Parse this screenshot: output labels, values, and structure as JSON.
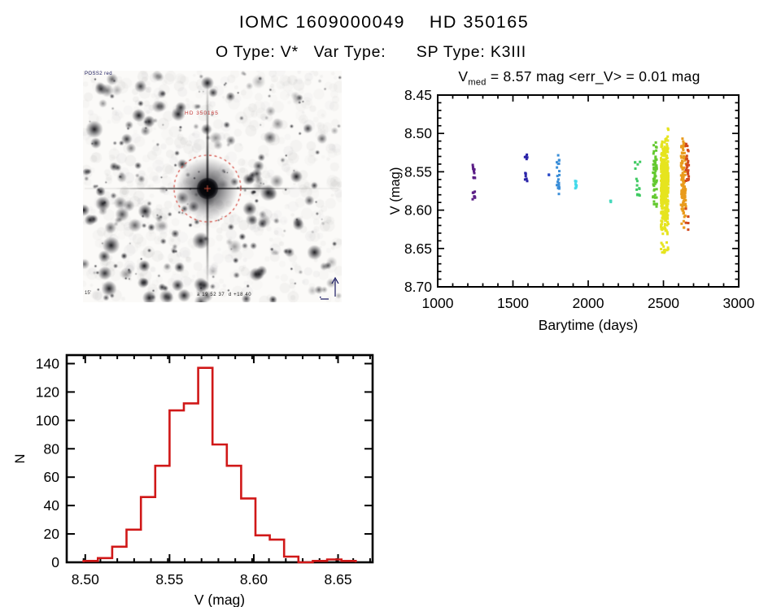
{
  "page": {
    "title": "IOMC 1609000049    HD 350165",
    "subtitle": "O Type: V*   Var Type:      SP Type: K3III"
  },
  "finder_chart": {
    "survey_label": "POSS2 red",
    "target_label": "HD 350165",
    "coords_label": "a 19 52 37  d +18 40",
    "scale_label": "15'",
    "circle_color": "#d2463c"
  },
  "chart_data": [
    {
      "type": "scatter",
      "title": {
        "main": "V",
        "sub": "med",
        "rest": " = 8.57 mag <err_V> = 0.01 mag"
      },
      "xlabel": "Barytime (days)",
      "ylabel": "V (mag)",
      "xlim": [
        1000,
        3000
      ],
      "ylim_top_to_bottom": [
        8.45,
        8.7
      ],
      "xticks": [
        "1000",
        "1500",
        "2000",
        "2500",
        "3000"
      ],
      "yticks": [
        "8.45",
        "8.50",
        "8.55",
        "8.60",
        "8.65",
        "8.70"
      ],
      "x_minor_step": 100,
      "y_minor_step": 0.01,
      "legend": "none",
      "grid": false,
      "clusters": [
        {
          "t": 1240,
          "color": "#5a1d86",
          "jx": 3,
          "segments": [
            [
              8.541,
              8.552,
              7
            ],
            [
              8.556,
              8.563,
              4
            ],
            [
              8.575,
              8.588,
              9
            ]
          ]
        },
        {
          "t": 1588,
          "color": "#2a23a8",
          "jx": 3,
          "segments": [
            [
              8.527,
              8.536,
              5
            ],
            [
              8.551,
              8.556,
              3
            ],
            [
              8.558,
              8.564,
              3
            ]
          ]
        },
        {
          "t": 1735,
          "color": "#2c4bc8",
          "jx": 2,
          "segments": [
            [
              8.551,
              8.556,
              2
            ]
          ]
        },
        {
          "t": 1800,
          "color": "#3a8ed8",
          "jx": 3,
          "segments": [
            [
              8.527,
              8.54,
              6
            ],
            [
              8.544,
              8.581,
              16
            ]
          ]
        },
        {
          "t": 1915,
          "color": "#41d9ea",
          "jx": 3,
          "segments": [
            [
              8.56,
              8.572,
              9
            ]
          ]
        },
        {
          "t": 2150,
          "color": "#44d8bb",
          "jx": 2,
          "segments": [
            [
              8.587,
              8.592,
              3
            ]
          ]
        },
        {
          "t": 2330,
          "color": "#3fca62",
          "jx": 7,
          "segments": [
            [
              8.536,
              8.546,
              5
            ],
            [
              8.557,
              8.586,
              11
            ]
          ]
        },
        {
          "t": 2443,
          "color": "#63c92e",
          "jx": 5,
          "segments": [
            [
              8.507,
              8.601,
              65
            ]
          ]
        },
        {
          "t": 2508,
          "color": "#e6e41e",
          "jx": 9,
          "segments": [
            [
              8.491,
              8.496,
              2
            ],
            [
              8.504,
              8.633,
              430
            ],
            [
              8.642,
              8.657,
              14
            ]
          ]
        },
        {
          "t": 2633,
          "color": "#e99b1c",
          "jx": 6,
          "segments": [
            [
              8.503,
              8.632,
              120
            ]
          ]
        },
        {
          "t": 2658,
          "color": "#d24a1c",
          "jx": 4,
          "segments": [
            [
              8.512,
              8.562,
              28
            ],
            [
              8.598,
              8.627,
              6
            ]
          ]
        }
      ]
    },
    {
      "type": "histogram",
      "xlabel": "V (mag)",
      "ylabel": "N",
      "xlim": [
        8.489,
        8.6705
      ],
      "ylim": [
        0,
        146
      ],
      "xticks": [
        "8.50",
        "8.55",
        "8.60",
        "8.65"
      ],
      "yticks": [
        "0",
        "20",
        "40",
        "60",
        "80",
        "100",
        "120",
        "140"
      ],
      "x_minor_step": 0.01,
      "bin_start": 8.499,
      "bin_width": 0.0085,
      "values": [
        1,
        3,
        11,
        23,
        46,
        68,
        107,
        112,
        137,
        83,
        68,
        45,
        19,
        16,
        4,
        0,
        1,
        2,
        1
      ],
      "color": "#d01818",
      "grid": false
    }
  ]
}
